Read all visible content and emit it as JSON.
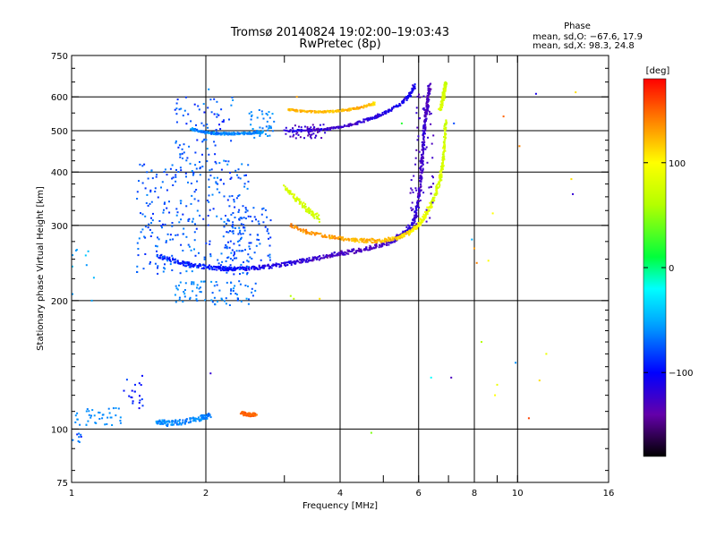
{
  "header": {
    "title_line1": "Tromsø 20140824 19:02:00–19:03:43",
    "title_line2": "RwPretec (8p)"
  },
  "phase_box": {
    "heading": "Phase",
    "line_o": "mean, sd,O: −67.6, 17.9",
    "line_x": "mean, sd,X:  98.3, 24.8"
  },
  "colorbar": {
    "unit": "[deg]",
    "min": -180,
    "max": 180,
    "ticks": [
      {
        "value": 100,
        "label": "100"
      },
      {
        "value": 0,
        "label": "0"
      },
      {
        "value": -100,
        "label": "−100"
      }
    ]
  },
  "chart_data": {
    "type": "scatter",
    "title": "Tromsø 20140824 19:02:00–19:03:43 RwPretec (8p)",
    "xlabel": "Frequency [MHz]",
    "ylabel": "Stationary phase Virtual Height [km]",
    "xscale": "log",
    "yscale": "log",
    "xlim": [
      1,
      16
    ],
    "ylim": [
      75,
      750
    ],
    "xticks": [
      {
        "value": 1,
        "label": "1",
        "grid": false
      },
      {
        "value": 2,
        "label": "2",
        "grid": true
      },
      {
        "value": 3,
        "label": "",
        "grid": false
      },
      {
        "value": 4,
        "label": "4",
        "grid": true
      },
      {
        "value": 5,
        "label": "",
        "grid": false
      },
      {
        "value": 6,
        "label": "6",
        "grid": true
      },
      {
        "value": 7,
        "label": "",
        "grid": false
      },
      {
        "value": 8,
        "label": "8",
        "grid": true
      },
      {
        "value": 9,
        "label": "",
        "grid": false
      },
      {
        "value": 10,
        "label": "10",
        "grid": true
      },
      {
        "value": 16,
        "label": "16",
        "grid": false
      }
    ],
    "yticks": [
      {
        "value": 75,
        "label": "75",
        "grid": false
      },
      {
        "value": 100,
        "label": "100",
        "grid": true
      },
      {
        "value": 200,
        "label": "200",
        "grid": true
      },
      {
        "value": 300,
        "label": "300",
        "grid": true
      },
      {
        "value": 400,
        "label": "400",
        "grid": true
      },
      {
        "value": 500,
        "label": "500",
        "grid": true
      },
      {
        "value": 600,
        "label": "600",
        "grid": true
      },
      {
        "value": 750,
        "label": "750",
        "grid": false
      }
    ],
    "color_value": "phase [deg]",
    "traces": [
      {
        "x": [
          1.55,
          1.7,
          1.85,
          2.0,
          2.15,
          2.3,
          2.5,
          2.75,
          3.0,
          3.3,
          3.6,
          4.0,
          4.4,
          4.8,
          5.2,
          5.5,
          5.8,
          5.95,
          6.05,
          6.1
        ],
        "y": [
          255,
          248,
          242,
          240,
          238,
          237,
          238,
          240,
          243,
          248,
          252,
          258,
          262,
          268,
          275,
          285,
          300,
          330,
          370,
          420
        ],
        "phase": [
          -90,
          -90,
          -92,
          -95,
          -95,
          -100,
          -105,
          -110,
          -115,
          -120,
          -125,
          -128,
          -130,
          -128,
          -125,
          -120,
          -115,
          -120,
          -125,
          -128
        ],
        "spread": [
          6,
          6,
          6,
          5,
          5,
          5,
          5,
          5,
          5,
          5,
          6,
          6,
          6,
          6,
          7,
          8,
          10,
          14,
          18,
          22
        ]
      },
      {
        "x": [
          6.1,
          6.15,
          6.2,
          6.25,
          6.3,
          6.35
        ],
        "y": [
          420,
          470,
          520,
          560,
          600,
          640
        ],
        "phase": [
          -125,
          -125,
          -125,
          -130,
          -130,
          -130
        ],
        "spread": [
          14,
          14,
          14,
          14,
          14,
          14
        ]
      },
      {
        "x": [
          3.0,
          3.4,
          3.8,
          4.2,
          4.6,
          5.0,
          5.4,
          5.7,
          5.9
        ],
        "y": [
          500,
          500,
          505,
          515,
          530,
          548,
          572,
          600,
          640
        ],
        "phase": [
          -115,
          -120,
          -120,
          -125,
          -120,
          -115,
          -110,
          -110,
          -110
        ],
        "spread": [
          6,
          6,
          6,
          6,
          7,
          8,
          8,
          10,
          10
        ]
      },
      {
        "x": [
          3.05,
          3.3,
          3.6,
          3.9,
          4.2,
          4.5,
          4.8
        ],
        "y": [
          560,
          555,
          553,
          555,
          560,
          568,
          580
        ],
        "phase": [
          120,
          125,
          120,
          118,
          125,
          130,
          110
        ],
        "spread": [
          5,
          5,
          5,
          5,
          6,
          6,
          7
        ]
      },
      {
        "x": [
          3.1,
          3.4,
          3.8,
          4.2,
          4.6,
          5.0,
          5.4,
          5.7,
          5.95,
          6.15,
          6.35,
          6.55,
          6.7,
          6.8,
          6.85,
          6.9
        ],
        "y": [
          300,
          288,
          282,
          278,
          276,
          277,
          281,
          288,
          298,
          312,
          330,
          355,
          385,
          420,
          470,
          530
        ],
        "phase": [
          140,
          135,
          130,
          128,
          125,
          120,
          115,
          110,
          100,
          90,
          85,
          80,
          80,
          78,
          75,
          75
        ],
        "spread": [
          5,
          5,
          5,
          5,
          6,
          6,
          6,
          7,
          8,
          9,
          10,
          10,
          10,
          10,
          12,
          14
        ]
      },
      {
        "x": [
          3.0,
          3.2,
          3.4,
          3.6
        ],
        "y": [
          370,
          345,
          325,
          310
        ],
        "phase": [
          80,
          80,
          75,
          80
        ],
        "spread": [
          10,
          10,
          10,
          10
        ]
      },
      {
        "x": [
          6.7,
          6.8,
          6.85,
          6.9
        ],
        "y": [
          560,
          590,
          620,
          650
        ],
        "phase": [
          80,
          80,
          78,
          75
        ],
        "spread": [
          8,
          8,
          8,
          8
        ]
      },
      {
        "x": [
          1.85,
          2.0,
          2.15,
          2.3,
          2.5,
          2.7
        ],
        "y": [
          505,
          495,
          492,
          492,
          493,
          497
        ],
        "phase": [
          -60,
          -62,
          -65,
          -62,
          -60,
          -60
        ],
        "spread": [
          6,
          6,
          6,
          6,
          6,
          6
        ]
      },
      {
        "x": [
          1.55,
          1.65,
          1.8,
          1.95,
          2.05
        ],
        "y": [
          104,
          103,
          104,
          106,
          108
        ],
        "phase": [
          -60,
          -60,
          -62,
          -60,
          -65
        ],
        "spread": [
          3,
          3,
          3,
          3,
          3
        ]
      },
      {
        "x": [
          2.4,
          2.5,
          2.6
        ],
        "y": [
          109,
          108,
          108
        ],
        "phase": [
          150,
          150,
          145
        ],
        "spread": [
          2,
          2,
          2
        ]
      }
    ],
    "clusters": [
      {
        "x": [
          1.4,
          2.5
        ],
        "y": [
          230,
          420
        ],
        "phase": [
          -60,
          -90
        ],
        "count": 280
      },
      {
        "x": [
          1.7,
          2.3
        ],
        "y": [
          400,
          600
        ],
        "phase": [
          -55,
          -95
        ],
        "count": 90
      },
      {
        "x": [
          2.2,
          2.8
        ],
        "y": [
          245,
          330
        ],
        "phase": [
          -65,
          -90
        ],
        "count": 90
      },
      {
        "x": [
          2.5,
          2.85
        ],
        "y": [
          480,
          560
        ],
        "phase": [
          -55,
          -70
        ],
        "count": 40
      },
      {
        "x": [
          1.7,
          2.0
        ],
        "y": [
          198,
          222
        ],
        "phase": [
          -55,
          -70
        ],
        "count": 35
      },
      {
        "x": [
          2.05,
          2.6
        ],
        "y": [
          195,
          222
        ],
        "phase": [
          -55,
          -80
        ],
        "count": 45
      },
      {
        "x": [
          1.0,
          1.3
        ],
        "y": [
          102,
          112
        ],
        "phase": [
          -55,
          -65
        ],
        "count": 40
      },
      {
        "x": [
          1.0,
          1.06
        ],
        "y": [
          93,
          98
        ],
        "phase": [
          -60,
          -100
        ],
        "count": 8
      },
      {
        "x": [
          1.3,
          1.45
        ],
        "y": [
          110,
          135
        ],
        "phase": [
          -60,
          -110
        ],
        "count": 20
      },
      {
        "x": [
          3.0,
          3.7
        ],
        "y": [
          480,
          520
        ],
        "phase": [
          -115,
          -140
        ],
        "count": 50
      },
      {
        "x": [
          5.75,
          6.5
        ],
        "y": [
          300,
          650
        ],
        "phase": [
          -120,
          -135
        ],
        "count": 70
      },
      {
        "x": [
          1.0,
          1.15
        ],
        "y": [
          190,
          265
        ],
        "phase": [
          -40,
          -60
        ],
        "count": 10
      }
    ],
    "scattered_points": [
      {
        "x": 2.03,
        "y": 625,
        "phase": -60
      },
      {
        "x": 2.05,
        "y": 135,
        "phase": -120
      },
      {
        "x": 3.2,
        "y": 600,
        "phase": 130
      },
      {
        "x": 3.1,
        "y": 205,
        "phase": 60
      },
      {
        "x": 3.15,
        "y": 202,
        "phase": 65
      },
      {
        "x": 3.6,
        "y": 202,
        "phase": 110
      },
      {
        "x": 4.7,
        "y": 98,
        "phase": 45
      },
      {
        "x": 5.5,
        "y": 520,
        "phase": 20
      },
      {
        "x": 7.2,
        "y": 520,
        "phase": -80
      },
      {
        "x": 6.4,
        "y": 132,
        "phase": -20
      },
      {
        "x": 7.1,
        "y": 132,
        "phase": -130
      },
      {
        "x": 7.9,
        "y": 278,
        "phase": -50
      },
      {
        "x": 8.0,
        "y": 265,
        "phase": 130
      },
      {
        "x": 8.1,
        "y": 245,
        "phase": 140
      },
      {
        "x": 8.3,
        "y": 160,
        "phase": 60
      },
      {
        "x": 8.6,
        "y": 248,
        "phase": 100
      },
      {
        "x": 8.8,
        "y": 320,
        "phase": 100
      },
      {
        "x": 8.9,
        "y": 120,
        "phase": 100
      },
      {
        "x": 9.0,
        "y": 127,
        "phase": 90
      },
      {
        "x": 9.3,
        "y": 540,
        "phase": 150
      },
      {
        "x": 9.9,
        "y": 143,
        "phase": -60
      },
      {
        "x": 10.1,
        "y": 460,
        "phase": 140
      },
      {
        "x": 10.6,
        "y": 106,
        "phase": 160
      },
      {
        "x": 11.0,
        "y": 610,
        "phase": -110
      },
      {
        "x": 11.2,
        "y": 130,
        "phase": 110
      },
      {
        "x": 11.6,
        "y": 150,
        "phase": 90
      },
      {
        "x": 13.2,
        "y": 385,
        "phase": 110
      },
      {
        "x": 13.3,
        "y": 355,
        "phase": -120
      },
      {
        "x": 13.5,
        "y": 615,
        "phase": 110
      }
    ]
  }
}
